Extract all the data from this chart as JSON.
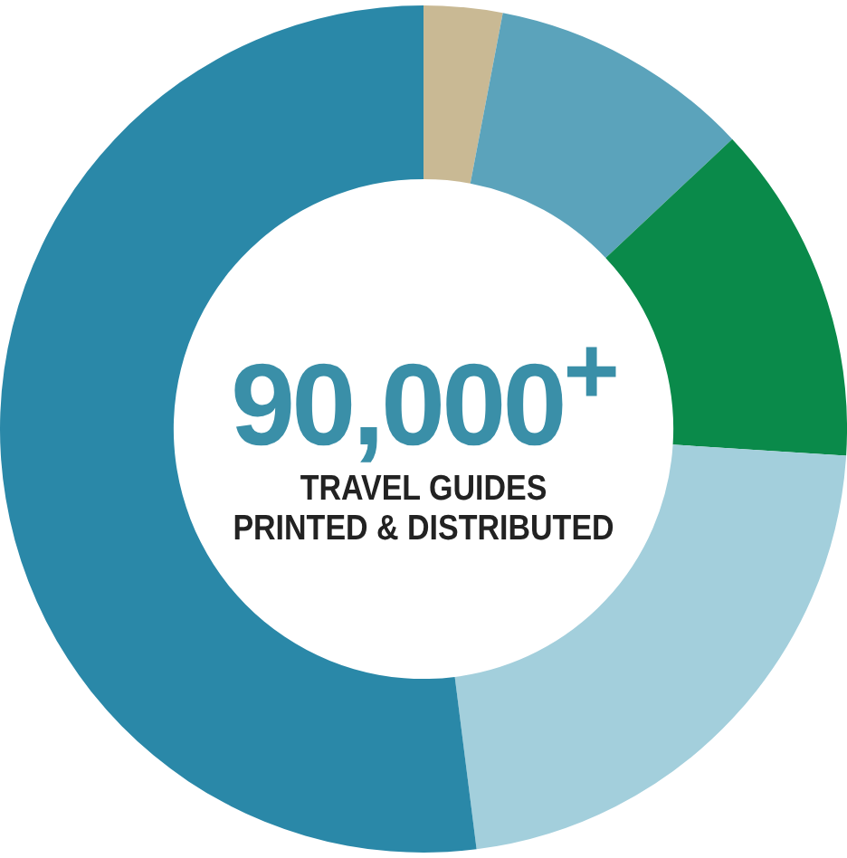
{
  "chart_data": {
    "type": "donut",
    "categories": [
      null,
      null,
      null,
      null,
      null
    ],
    "values": [
      3,
      10,
      13,
      22,
      52
    ],
    "colors": [
      "#c9b994",
      "#5ba3bb",
      "#0a8a4a",
      "#a3cfdc",
      "#2a88a8"
    ],
    "annotations": [
      "90,000$^{+}$",
      "TRAVEL GUIDES",
      "PRINTED & DISTRIBUTED"
    ]
  }
}
